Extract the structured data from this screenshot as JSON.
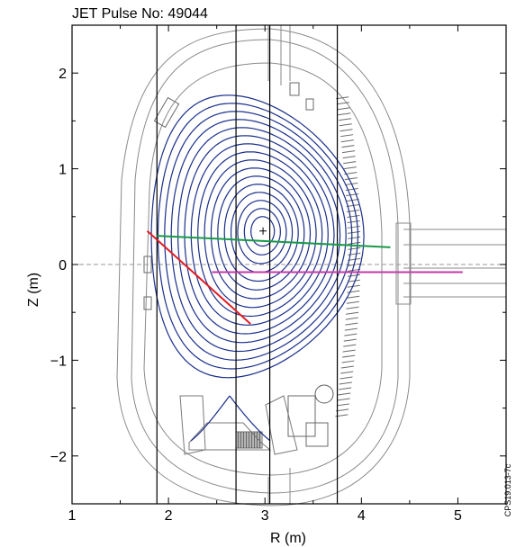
{
  "figure": {
    "title": "JET Pulse No: 49044",
    "xlabel": "R (m)",
    "ylabel": "Z (m)",
    "code": "CPS19.013-7c",
    "colors": {
      "flux": "#1a2f8c",
      "green_chord": "#1a9a4a",
      "red_chord": "#e01f26",
      "magenta_chord": "#c23aa8",
      "vessel": "#8a8a8a",
      "frame": "#000000"
    }
  },
  "chart_data": {
    "type": "equilibrium-diagram",
    "title": "JET Pulse No: 49044",
    "xlabel": "R (m)",
    "ylabel": "Z (m)",
    "xlim": [
      1.0,
      5.5
    ],
    "ylim": [
      -2.5,
      2.5
    ],
    "x_ticks": [
      1,
      2,
      3,
      4,
      5
    ],
    "y_ticks": [
      2,
      1,
      0,
      -1,
      -2
    ],
    "x_tick_labels": [
      "1",
      "2",
      "3",
      "4",
      "5"
    ],
    "y_tick_labels": [
      "2",
      "1",
      "0",
      "−1",
      "−2"
    ],
    "magnetic_axis": [
      2.98,
      0.35
    ],
    "vertical_lines_R": [
      1.88,
      2.7,
      3.05,
      3.75
    ],
    "chords": [
      {
        "color": "green",
        "from": [
          1.88,
          0.3
        ],
        "to": [
          4.3,
          0.18
        ]
      },
      {
        "color": "red",
        "from": [
          1.78,
          0.35
        ],
        "to": [
          2.85,
          -0.62
        ]
      },
      {
        "color": "magenta",
        "from": [
          2.45,
          -0.08
        ],
        "to": [
          5.05,
          -0.08
        ]
      }
    ],
    "midplane_z": 0.0
  }
}
